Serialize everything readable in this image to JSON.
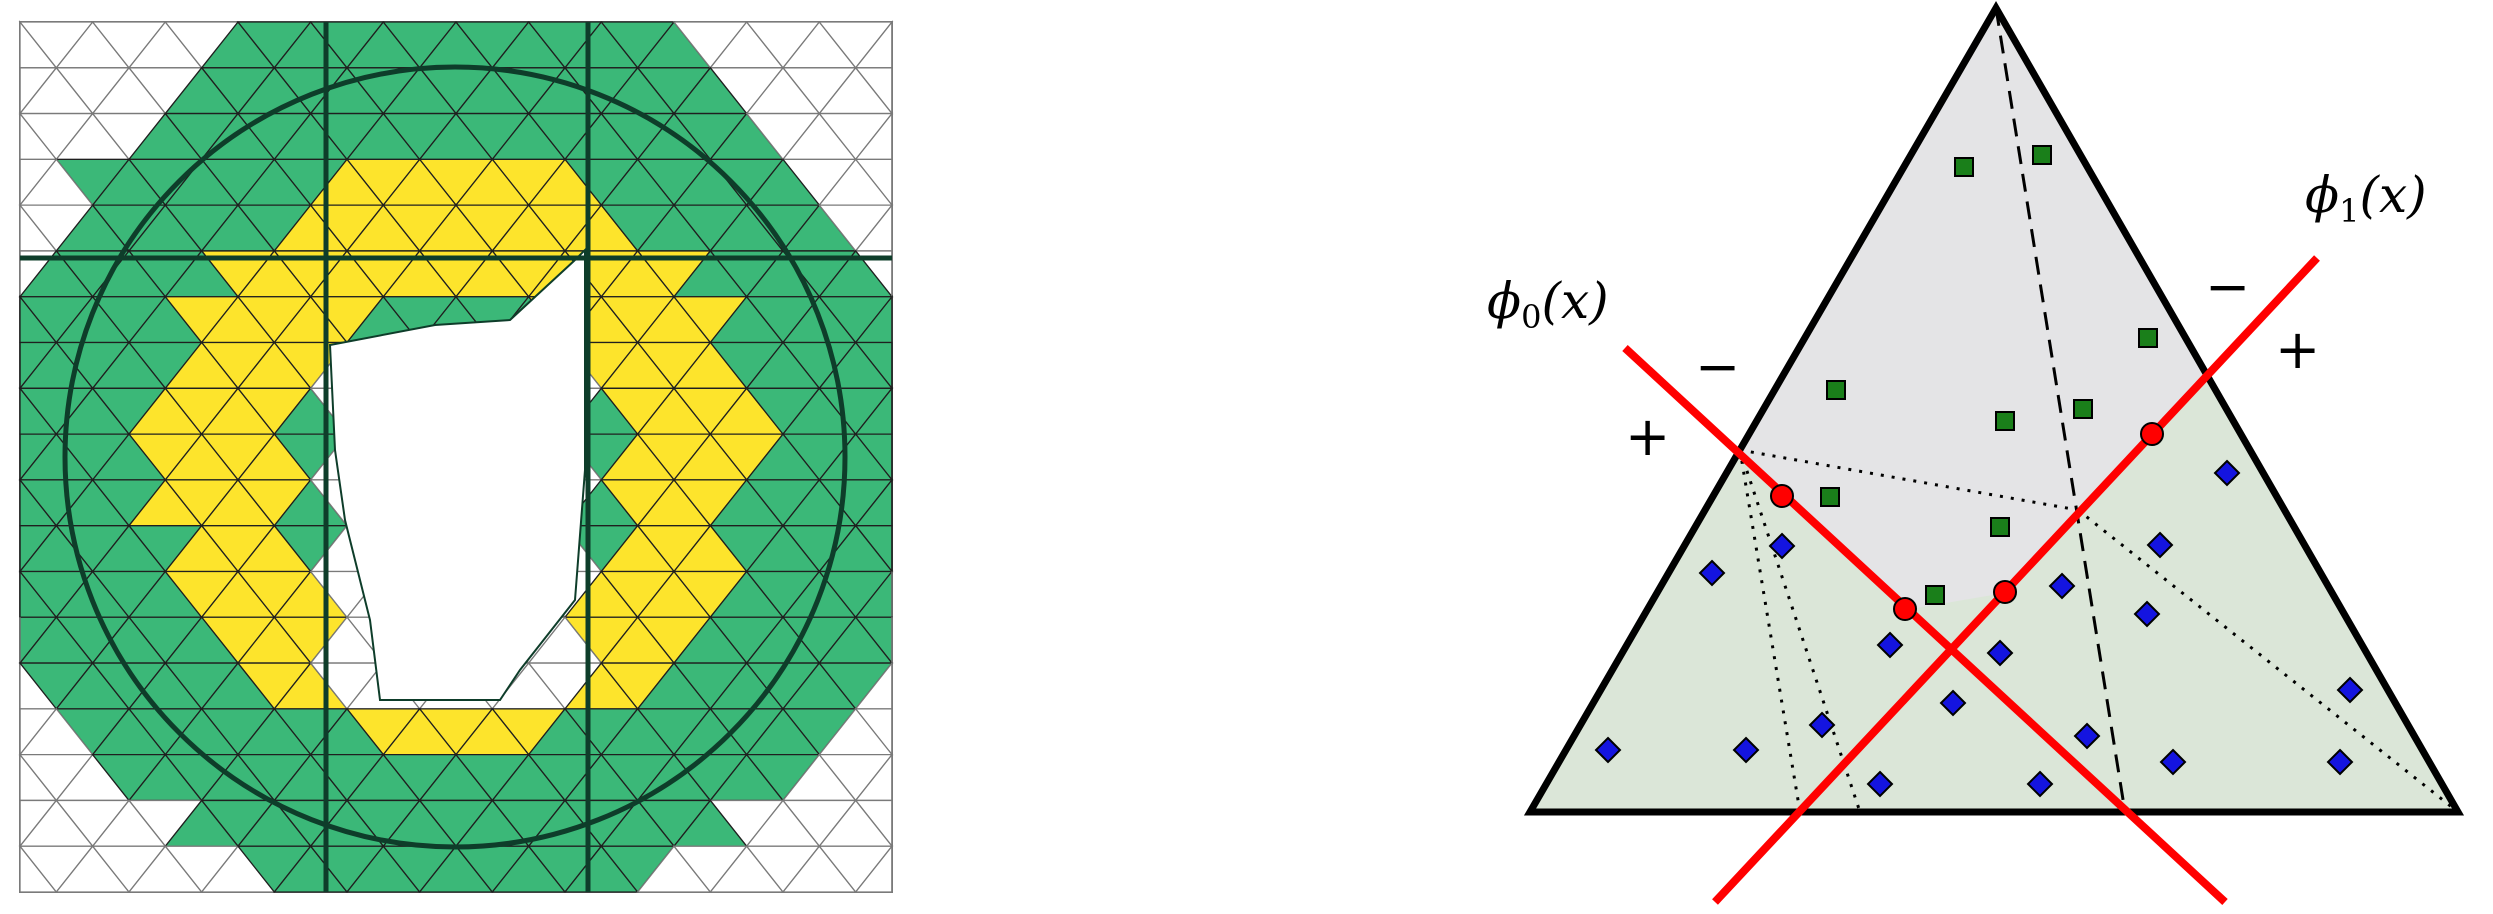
{
  "colors": {
    "background": "#ffffff",
    "mesh_line": "#7a7a7a",
    "green_fill": "#3bb878",
    "yellow_fill": "#fde42c",
    "dark_line": "#0e3d2a",
    "upper_region": "#e4e4e6",
    "lower_region": "#dbe6d8",
    "red_line": "#ff0000",
    "square_marker": "#1a7f1a",
    "diamond_marker": "#1414e0"
  },
  "left_panel": {
    "description_icon": "mesh-icon"
  },
  "right_panel": {
    "labels": {
      "phi0": "ϕ0(x)",
      "phi0_symbol": "ϕ",
      "phi0_sub": "0",
      "phi0_arg": "(x)",
      "phi1_symbol": "ϕ",
      "phi1_sub": "1",
      "phi1_arg": "(x)",
      "minus_left": "−",
      "plus_left": "+",
      "minus_right": "−",
      "plus_right": "+"
    }
  }
}
